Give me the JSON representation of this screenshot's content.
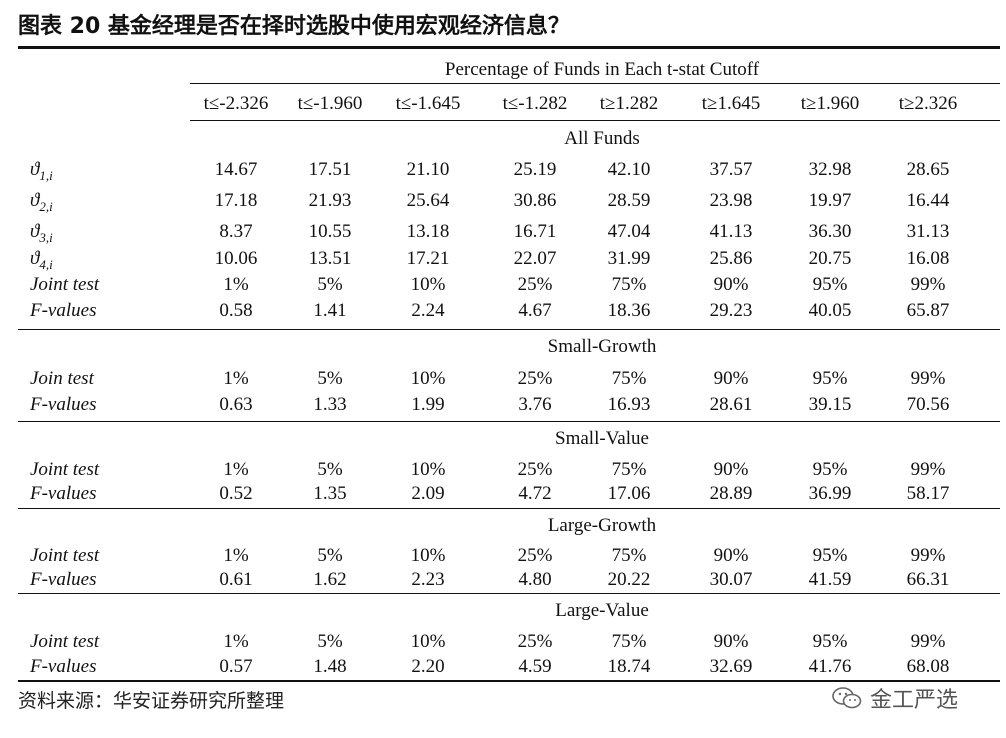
{
  "title": "图表 20 基金经理是否在择时选股中使用宏观经济信息？",
  "table": {
    "super_header": "Percentage of Funds in Each t-stat Cutoff",
    "columns": [
      "t≤-2.326",
      "t≤-1.960",
      "t≤-1.645",
      "t≤-1.282",
      "t≥1.282",
      "t≥1.645",
      "t≥1.960",
      "t≥2.326"
    ],
    "sections": [
      {
        "name": "All Funds",
        "rows": [
          {
            "label": "ϑ",
            "sub": "1,i",
            "values": [
              "14.67",
              "17.51",
              "21.10",
              "25.19",
              "42.10",
              "37.57",
              "32.98",
              "28.65"
            ]
          },
          {
            "label": "ϑ",
            "sub": "2,i",
            "values": [
              "17.18",
              "21.93",
              "25.64",
              "30.86",
              "28.59",
              "23.98",
              "19.97",
              "16.44"
            ]
          },
          {
            "label": "ϑ",
            "sub": "3,i",
            "values": [
              "8.37",
              "10.55",
              "13.18",
              "16.71",
              "47.04",
              "41.13",
              "36.30",
              "31.13"
            ]
          },
          {
            "label": "ϑ",
            "sub": "4,i",
            "values": [
              "10.06",
              "13.51",
              "17.21",
              "22.07",
              "31.99",
              "25.86",
              "20.75",
              "16.08"
            ]
          },
          {
            "label": "Joint test",
            "sub": "",
            "values": [
              "1%",
              "5%",
              "10%",
              "25%",
              "75%",
              "90%",
              "95%",
              "99%"
            ]
          },
          {
            "label": "F-values",
            "sub": "",
            "values": [
              "0.58",
              "1.41",
              "2.24",
              "4.67",
              "18.36",
              "29.23",
              "40.05",
              "65.87"
            ]
          }
        ]
      },
      {
        "name": "Small-Growth",
        "rows": [
          {
            "label": "Join test",
            "sub": "",
            "values": [
              "1%",
              "5%",
              "10%",
              "25%",
              "75%",
              "90%",
              "95%",
              "99%"
            ]
          },
          {
            "label": "F-values",
            "sub": "",
            "values": [
              "0.63",
              "1.33",
              "1.99",
              "3.76",
              "16.93",
              "28.61",
              "39.15",
              "70.56"
            ]
          }
        ]
      },
      {
        "name": "Small-Value",
        "rows": [
          {
            "label": "Joint test",
            "sub": "",
            "values": [
              "1%",
              "5%",
              "10%",
              "25%",
              "75%",
              "90%",
              "95%",
              "99%"
            ]
          },
          {
            "label": "F-values",
            "sub": "",
            "values": [
              "0.52",
              "1.35",
              "2.09",
              "4.72",
              "17.06",
              "28.89",
              "36.99",
              "58.17"
            ]
          }
        ]
      },
      {
        "name": "Large-Growth",
        "rows": [
          {
            "label": "Joint test",
            "sub": "",
            "values": [
              "1%",
              "5%",
              "10%",
              "25%",
              "75%",
              "90%",
              "95%",
              "99%"
            ]
          },
          {
            "label": "F-values",
            "sub": "",
            "values": [
              "0.61",
              "1.62",
              "2.23",
              "4.80",
              "20.22",
              "30.07",
              "41.59",
              "66.31"
            ]
          }
        ]
      },
      {
        "name": "Large-Value",
        "rows": [
          {
            "label": "Joint test",
            "sub": "",
            "values": [
              "1%",
              "5%",
              "10%",
              "25%",
              "75%",
              "90%",
              "95%",
              "99%"
            ]
          },
          {
            "label": "F-values",
            "sub": "",
            "values": [
              "0.57",
              "1.48",
              "2.20",
              "4.59",
              "18.74",
              "32.69",
              "41.76",
              "68.08"
            ]
          }
        ]
      }
    ]
  },
  "source": "资料来源：华安证券研究所整理",
  "watermark": {
    "text": "金工严选",
    "icon": "wechat-icon"
  }
}
